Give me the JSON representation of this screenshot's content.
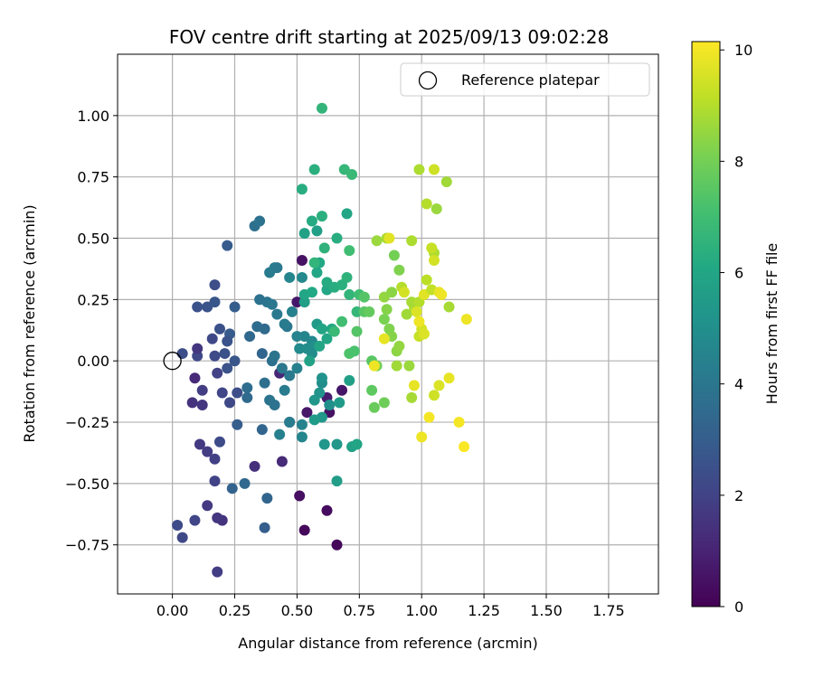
{
  "chart_data": {
    "type": "scatter",
    "title": "FOV centre drift starting at 2025/09/13 09:02:28",
    "xlabel": "Angular distance from reference (arcmin)",
    "ylabel": "Rotation from reference (arcmin)",
    "xlim": [
      -0.22,
      1.95
    ],
    "ylim": [
      -0.95,
      1.25
    ],
    "xticks": [
      "0.00",
      "0.25",
      "0.50",
      "0.75",
      "1.00",
      "1.25",
      "1.50",
      "1.75"
    ],
    "xtick_values": [
      0,
      0.25,
      0.5,
      0.75,
      1.0,
      1.25,
      1.5,
      1.75
    ],
    "yticks": [
      "−0.75",
      "−0.50",
      "−0.25",
      "0.00",
      "0.25",
      "0.50",
      "0.75",
      "1.00"
    ],
    "ytick_values": [
      -0.75,
      -0.5,
      -0.25,
      0,
      0.25,
      0.5,
      0.75,
      1.0
    ],
    "grid": true,
    "legend": {
      "position": "top-right",
      "entries": [
        "Reference platepar"
      ]
    },
    "reference_point": {
      "x": 0.0,
      "y": 0.0
    },
    "colorbar": {
      "label": "Hours from first FF file",
      "range": [
        0,
        10.15
      ],
      "ticks": [
        "0",
        "2",
        "4",
        "6",
        "8",
        "10"
      ],
      "tick_values": [
        0,
        2,
        4,
        6,
        8,
        10
      ],
      "colormap": "viridis"
    },
    "points": [
      [
        0.53,
        -0.69,
        0.2
      ],
      [
        0.62,
        -0.61,
        0.3
      ],
      [
        0.66,
        -0.75,
        0.2
      ],
      [
        0.51,
        -0.55,
        0.4
      ],
      [
        0.52,
        0.41,
        0.5
      ],
      [
        0.5,
        0.24,
        0.6
      ],
      [
        0.54,
        -0.21,
        0.7
      ],
      [
        0.62,
        -0.15,
        0.8
      ],
      [
        0.63,
        -0.21,
        0.5
      ],
      [
        0.68,
        -0.12,
        0.6
      ],
      [
        0.47,
        -0.25,
        1.0
      ],
      [
        0.43,
        -0.05,
        1.1
      ],
      [
        0.33,
        -0.43,
        1.4
      ],
      [
        0.44,
        -0.41,
        1.2
      ],
      [
        0.2,
        -0.65,
        1.5
      ],
      [
        0.18,
        -0.64,
        1.6
      ],
      [
        0.18,
        -0.86,
        1.8
      ],
      [
        0.14,
        -0.59,
        1.7
      ],
      [
        0.09,
        -0.65,
        2.1
      ],
      [
        0.04,
        -0.72,
        2.2
      ],
      [
        0.02,
        -0.67,
        2.3
      ],
      [
        0.17,
        -0.49,
        2.0
      ],
      [
        0.17,
        -0.4,
        1.9
      ],
      [
        0.14,
        -0.37,
        1.8
      ],
      [
        0.11,
        -0.34,
        1.7
      ],
      [
        0.19,
        -0.33,
        2.3
      ],
      [
        0.12,
        -0.18,
        1.6
      ],
      [
        0.08,
        -0.17,
        1.5
      ],
      [
        0.12,
        -0.12,
        1.8
      ],
      [
        0.09,
        -0.07,
        1.2
      ],
      [
        0.18,
        -0.05,
        2.0
      ],
      [
        0.2,
        -0.13,
        2.1
      ],
      [
        0.23,
        -0.17,
        2.2
      ],
      [
        0.26,
        -0.13,
        2.4
      ],
      [
        0.26,
        -0.26,
        3.0
      ],
      [
        0.24,
        -0.52,
        3.2
      ],
      [
        0.29,
        -0.5,
        3.4
      ],
      [
        0.38,
        -0.56,
        3.3
      ],
      [
        0.37,
        -0.68,
        3.0
      ],
      [
        0.22,
        -0.03,
        2.6
      ],
      [
        0.25,
        0.0,
        2.7
      ],
      [
        0.21,
        0.03,
        2.5
      ],
      [
        0.17,
        0.02,
        2.3
      ],
      [
        0.1,
        0.02,
        2.2
      ],
      [
        0.1,
        0.05,
        1.6
      ],
      [
        0.04,
        0.03,
        2.4
      ],
      [
        0.1,
        0.22,
        2.5
      ],
      [
        0.14,
        0.22,
        2.6
      ],
      [
        0.17,
        0.24,
        2.7
      ],
      [
        0.17,
        0.31,
        2.4
      ],
      [
        0.16,
        0.09,
        2.2
      ],
      [
        0.19,
        0.13,
        2.5
      ],
      [
        0.23,
        0.11,
        2.9
      ],
      [
        0.22,
        0.08,
        2.6
      ],
      [
        0.25,
        0.22,
        3.0
      ],
      [
        0.22,
        0.47,
        2.9
      ],
      [
        0.31,
        0.1,
        3.4
      ],
      [
        0.34,
        0.14,
        3.6
      ],
      [
        0.37,
        0.13,
        3.5
      ],
      [
        0.3,
        -0.11,
        3.6
      ],
      [
        0.3,
        -0.15,
        3.5
      ],
      [
        0.37,
        -0.09,
        3.7
      ],
      [
        0.36,
        -0.28,
        3.3
      ],
      [
        0.39,
        -0.16,
        3.9
      ],
      [
        0.36,
        0.03,
        3.3
      ],
      [
        0.4,
        0.0,
        3.7
      ],
      [
        0.41,
        0.02,
        3.9
      ],
      [
        0.44,
        -0.03,
        4.0
      ],
      [
        0.41,
        -0.18,
        3.8
      ],
      [
        0.45,
        -0.12,
        4.2
      ],
      [
        0.47,
        -0.25,
        4.3
      ],
      [
        0.43,
        -0.3,
        4.4
      ],
      [
        0.52,
        -0.31,
        4.6
      ],
      [
        0.52,
        -0.26,
        4.5
      ],
      [
        0.5,
        -0.03,
        4.4
      ],
      [
        0.47,
        -0.06,
        4.1
      ],
      [
        0.46,
        0.14,
        4.0
      ],
      [
        0.42,
        0.19,
        4.1
      ],
      [
        0.45,
        0.15,
        4.2
      ],
      [
        0.48,
        0.2,
        4.4
      ],
      [
        0.35,
        0.25,
        3.8
      ],
      [
        0.38,
        0.24,
        3.9
      ],
      [
        0.4,
        0.23,
        4.0
      ],
      [
        0.39,
        0.36,
        4.2
      ],
      [
        0.41,
        0.38,
        4.3
      ],
      [
        0.42,
        0.38,
        4.1
      ],
      [
        0.47,
        0.34,
        4.6
      ],
      [
        0.52,
        0.34,
        4.7
      ],
      [
        0.33,
        0.55,
        3.7
      ],
      [
        0.35,
        0.57,
        3.8
      ],
      [
        0.5,
        0.1,
        4.5
      ],
      [
        0.53,
        0.1,
        4.6
      ],
      [
        0.56,
        0.08,
        4.7
      ],
      [
        0.51,
        0.05,
        4.8
      ],
      [
        0.54,
        0.05,
        4.9
      ],
      [
        0.57,
        0.06,
        5.0
      ],
      [
        0.56,
        0.03,
        4.9
      ],
      [
        0.6,
        -0.09,
        4.9
      ],
      [
        0.6,
        -0.07,
        5.1
      ],
      [
        0.59,
        -0.13,
        5.2
      ],
      [
        0.57,
        -0.16,
        5.3
      ],
      [
        0.63,
        -0.18,
        5.0
      ],
      [
        0.6,
        -0.23,
        5.4
      ],
      [
        0.57,
        -0.24,
        5.5
      ],
      [
        0.61,
        -0.34,
        5.3
      ],
      [
        0.66,
        -0.34,
        5.4
      ],
      [
        0.66,
        -0.49,
        5.6
      ],
      [
        0.67,
        -0.17,
        5.5
      ],
      [
        0.71,
        -0.08,
        5.7
      ],
      [
        0.72,
        -0.35,
        5.8
      ],
      [
        0.74,
        -0.34,
        5.9
      ],
      [
        0.55,
        0.0,
        5.8
      ],
      [
        0.58,
        0.15,
        5.5
      ],
      [
        0.6,
        0.13,
        5.9
      ],
      [
        0.62,
        0.09,
        6.0
      ],
      [
        0.59,
        0.06,
        5.9
      ],
      [
        0.64,
        0.13,
        6.1
      ],
      [
        0.53,
        0.24,
        5.7
      ],
      [
        0.53,
        0.27,
        6.0
      ],
      [
        0.56,
        0.28,
        6.1
      ],
      [
        0.58,
        0.36,
        6.0
      ],
      [
        0.59,
        0.4,
        6.1
      ],
      [
        0.62,
        0.29,
        6.0
      ],
      [
        0.62,
        0.32,
        6.2
      ],
      [
        0.65,
        0.3,
        6.3
      ],
      [
        0.68,
        0.31,
        6.4
      ],
      [
        0.7,
        0.34,
        6.5
      ],
      [
        0.71,
        0.27,
        6.6
      ],
      [
        0.74,
        0.2,
        6.7
      ],
      [
        0.75,
        0.27,
        7.0
      ],
      [
        0.53,
        0.52,
        5.8
      ],
      [
        0.56,
        0.57,
        6.2
      ],
      [
        0.6,
        0.59,
        6.4
      ],
      [
        0.58,
        0.53,
        5.7
      ],
      [
        0.57,
        0.4,
        6.6
      ],
      [
        0.61,
        0.46,
        6.5
      ],
      [
        0.66,
        0.5,
        6.3
      ],
      [
        0.7,
        0.6,
        6.0
      ],
      [
        0.71,
        0.45,
        7.0
      ],
      [
        0.52,
        0.7,
        6.3
      ],
      [
        0.57,
        0.78,
        6.4
      ],
      [
        0.6,
        1.03,
        6.6
      ],
      [
        0.69,
        0.78,
        6.7
      ],
      [
        0.72,
        0.76,
        6.8
      ],
      [
        0.65,
        0.12,
        6.8
      ],
      [
        0.68,
        0.16,
        7.0
      ],
      [
        0.71,
        0.03,
        7.3
      ],
      [
        0.73,
        0.04,
        7.2
      ],
      [
        0.74,
        0.12,
        7.4
      ],
      [
        0.77,
        0.2,
        7.5
      ],
      [
        0.77,
        0.26,
        7.4
      ],
      [
        0.79,
        0.2,
        7.7
      ],
      [
        0.8,
        0.0,
        7.5
      ],
      [
        0.8,
        -0.12,
        7.6
      ],
      [
        0.82,
        -0.02,
        8.0
      ],
      [
        0.81,
        -0.19,
        7.8
      ],
      [
        0.85,
        -0.17,
        7.9
      ],
      [
        0.85,
        0.17,
        8.1
      ],
      [
        0.87,
        0.13,
        8.2
      ],
      [
        0.88,
        0.1,
        8.3
      ],
      [
        0.86,
        0.21,
        8.3
      ],
      [
        0.85,
        0.26,
        8.5
      ],
      [
        0.88,
        0.28,
        8.4
      ],
      [
        0.91,
        0.37,
        8.2
      ],
      [
        0.89,
        0.43,
        8.0
      ],
      [
        0.82,
        0.49,
        8.6
      ],
      [
        0.86,
        0.5,
        8.8
      ],
      [
        0.87,
        0.5,
        9.7
      ],
      [
        0.9,
        0.04,
        8.4
      ],
      [
        0.91,
        0.06,
        8.5
      ],
      [
        0.9,
        -0.02,
        8.7
      ],
      [
        0.95,
        -0.02,
        8.6
      ],
      [
        0.96,
        -0.15,
        8.8
      ],
      [
        0.94,
        0.19,
        8.7
      ],
      [
        0.97,
        0.22,
        8.9
      ],
      [
        0.92,
        0.3,
        9.0
      ],
      [
        0.93,
        0.28,
        9.5
      ],
      [
        0.96,
        0.49,
        8.9
      ],
      [
        0.96,
        0.24,
        8.8
      ],
      [
        0.99,
        0.24,
        9.0
      ],
      [
        1.0,
        0.13,
        9.5
      ],
      [
        0.99,
        0.1,
        9.3
      ],
      [
        1.01,
        0.11,
        9.6
      ],
      [
        1.01,
        0.27,
        9.7
      ],
      [
        1.04,
        0.29,
        9.2
      ],
      [
        1.02,
        0.33,
        9.1
      ],
      [
        1.05,
        0.44,
        8.9
      ],
      [
        1.04,
        0.46,
        9.3
      ],
      [
        1.05,
        0.41,
        9.5
      ],
      [
        0.99,
        0.78,
        8.9
      ],
      [
        1.02,
        0.64,
        9.0
      ],
      [
        1.06,
        0.62,
        8.6
      ],
      [
        1.1,
        0.73,
        8.7
      ],
      [
        1.05,
        0.78,
        9.4
      ],
      [
        1.07,
        0.28,
        9.8
      ],
      [
        1.08,
        0.27,
        9.9
      ],
      [
        1.11,
        0.22,
        8.8
      ],
      [
        0.97,
        -0.1,
        9.8
      ],
      [
        1.0,
        -0.31,
        9.9
      ],
      [
        1.03,
        -0.23,
        10.0
      ],
      [
        1.05,
        -0.14,
        9.4
      ],
      [
        1.07,
        -0.1,
        9.6
      ],
      [
        1.11,
        -0.07,
        9.8
      ],
      [
        1.15,
        -0.25,
        10.0
      ],
      [
        1.17,
        -0.35,
        10.1
      ],
      [
        1.18,
        0.17,
        9.9
      ],
      [
        0.99,
        0.16,
        9.9
      ],
      [
        0.98,
        0.2,
        9.6
      ],
      [
        0.85,
        0.09,
        9.8
      ],
      [
        0.81,
        -0.02,
        9.9
      ]
    ]
  }
}
